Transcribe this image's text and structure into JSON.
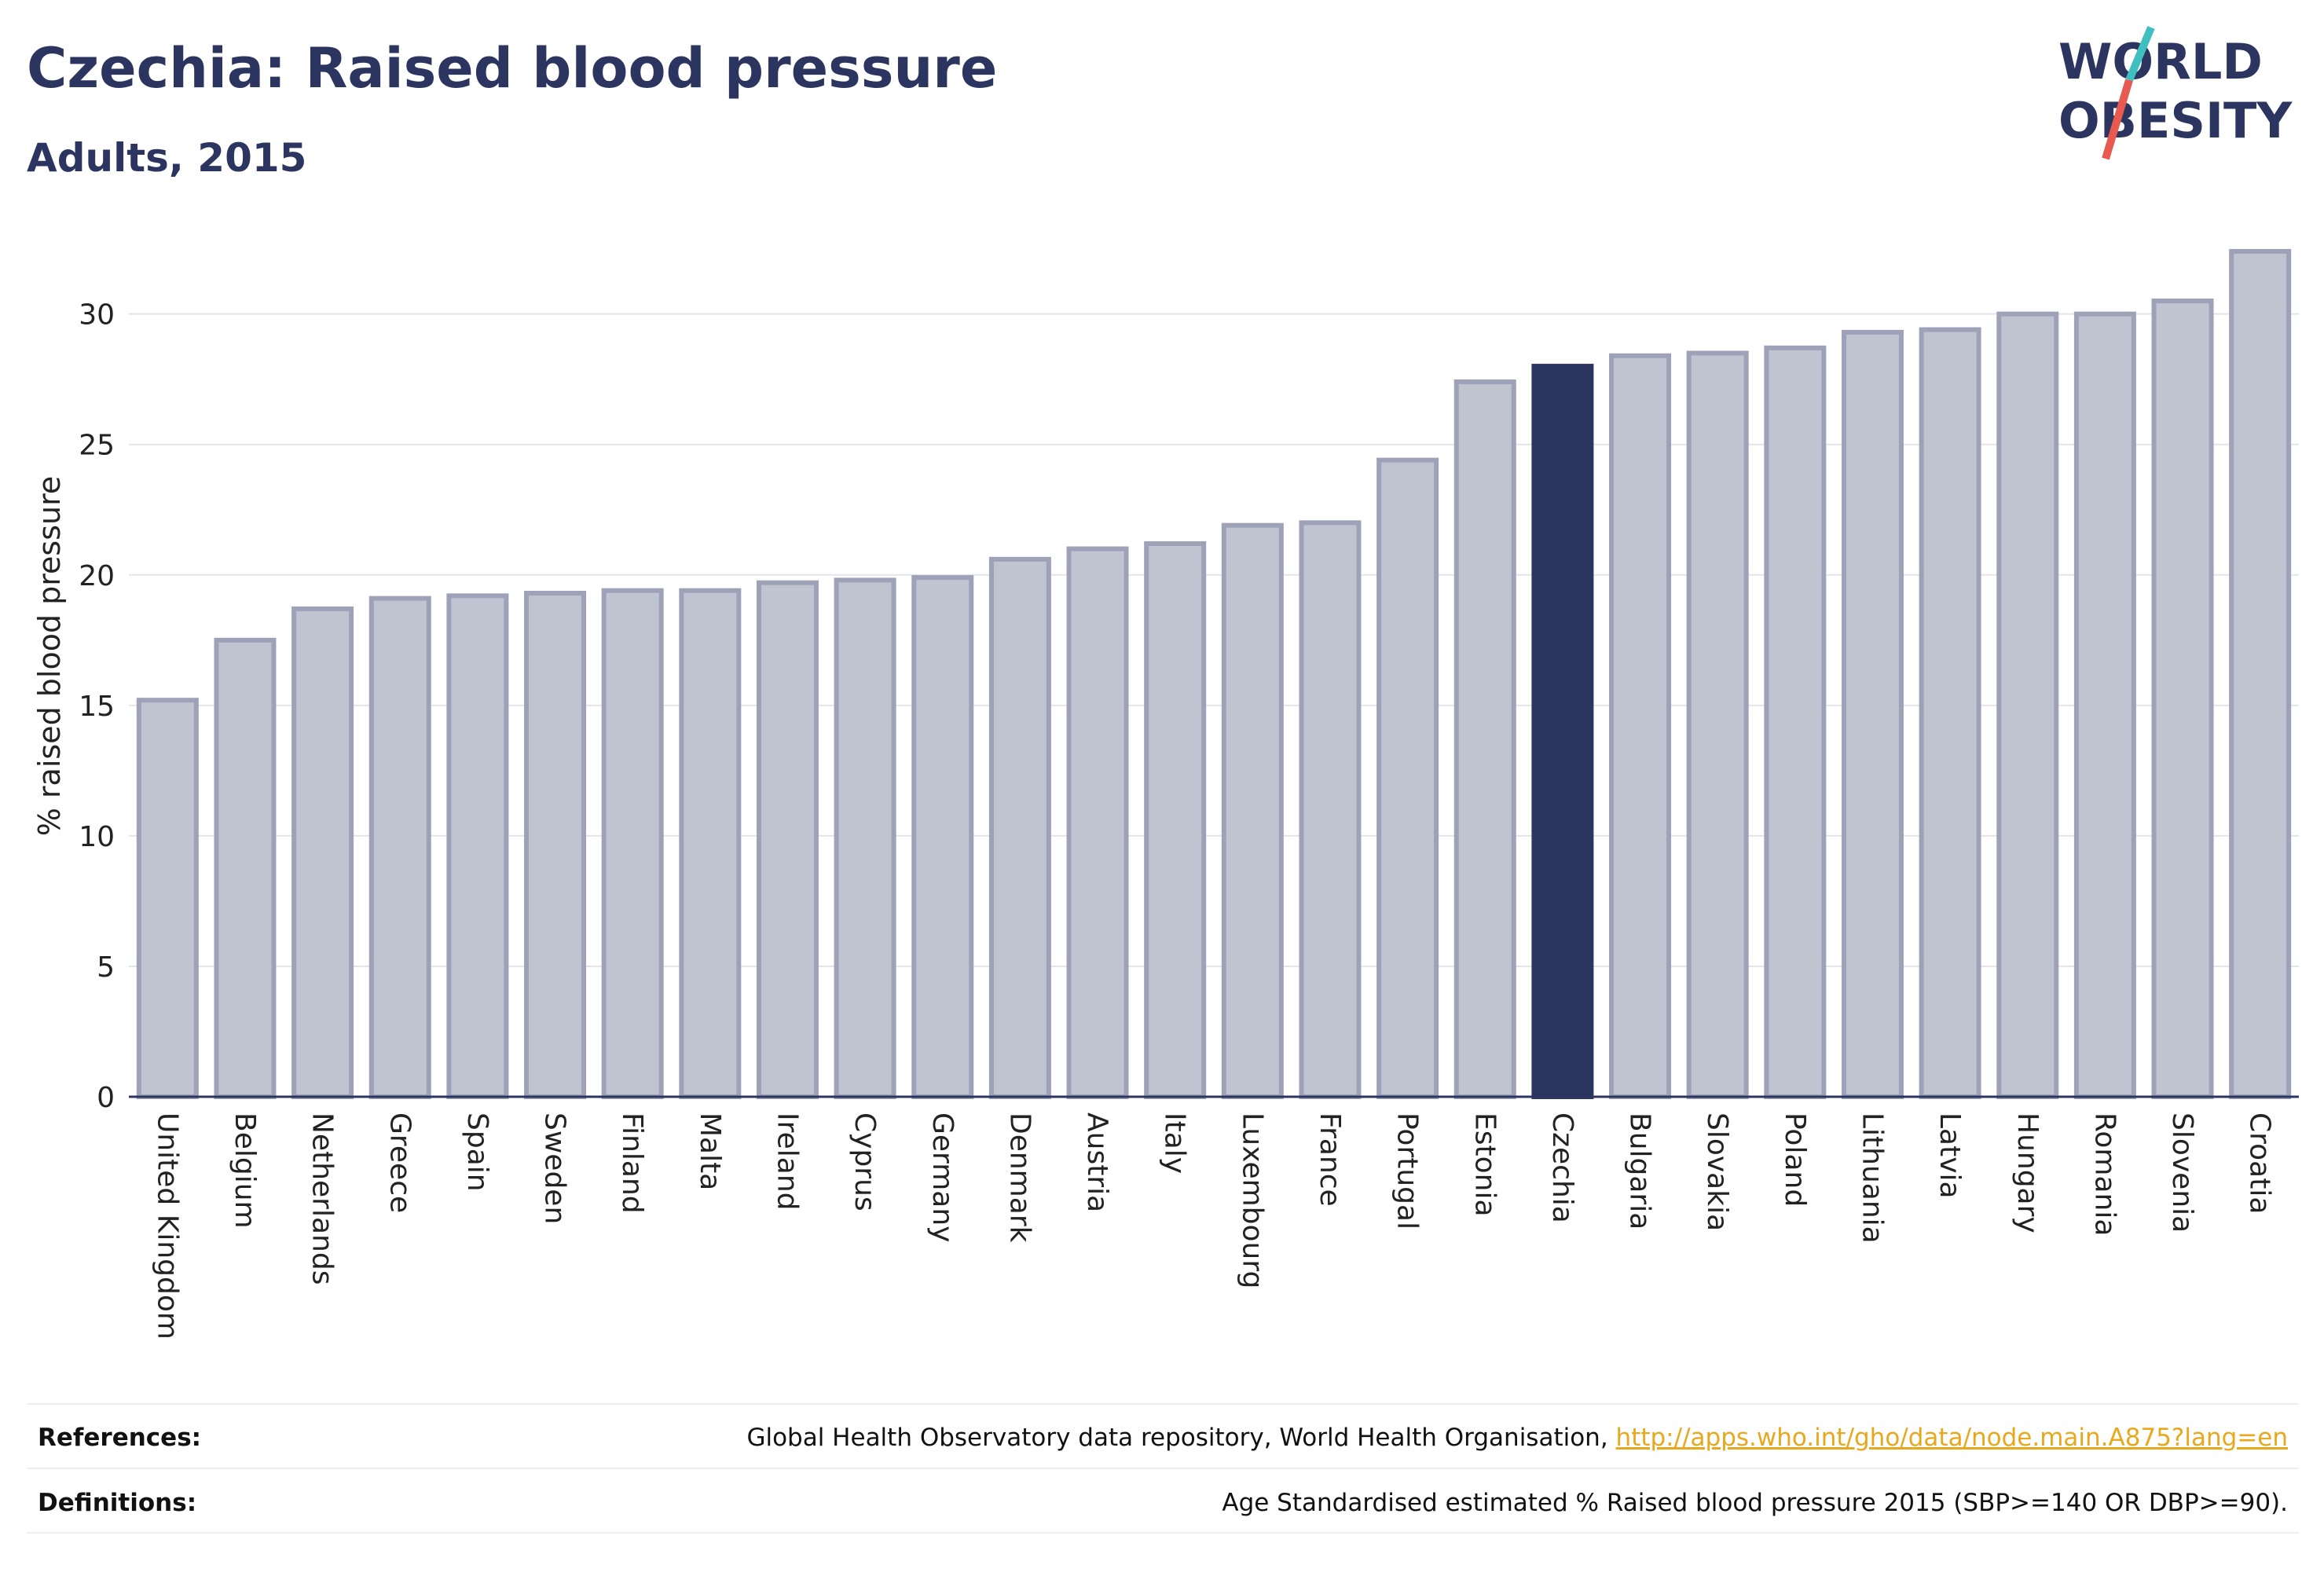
{
  "header": {
    "title": "Czechia: Raised blood pressure",
    "subtitle": "Adults, 2015"
  },
  "logo": {
    "line1": "WORLD",
    "line2": "OBESITY"
  },
  "footer": {
    "references_label": "References:",
    "references_text": "Global Health Observatory data repository, World Health Organisation,",
    "references_link": "http://apps.who.int/gho/data/node.main.A875?lang=en",
    "definitions_label": "Definitions:",
    "definitions_text": "Age Standardised estimated % Raised blood pressure 2015 (SBP>=140 OR DBP>=90)."
  },
  "colors": {
    "highlight": "#2b3560",
    "bar_fill": "#c0c3d0",
    "bar_stroke": "#9da2b8",
    "grid": "#e3e5ea",
    "logo_blue": "#2b3560",
    "logo_teal": "#3fbfbf",
    "logo_red": "#e85a50"
  },
  "chart_data": {
    "type": "bar",
    "title": "Czechia: Raised blood pressure",
    "subtitle": "Adults, 2015",
    "xlabel": "",
    "ylabel": "% raised blood pressure",
    "ylim": [
      0,
      33
    ],
    "yticks": [
      0,
      5,
      10,
      15,
      20,
      25,
      30
    ],
    "grid": true,
    "highlight": "Czechia",
    "categories": [
      "United Kingdom",
      "Belgium",
      "Netherlands",
      "Greece",
      "Spain",
      "Sweden",
      "Finland",
      "Malta",
      "Ireland",
      "Cyprus",
      "Germany",
      "Denmark",
      "Austria",
      "Italy",
      "Luxembourg",
      "France",
      "Portugal",
      "Estonia",
      "Czechia",
      "Bulgaria",
      "Slovakia",
      "Poland",
      "Lithuania",
      "Latvia",
      "Hungary",
      "Romania",
      "Slovenia",
      "Croatia"
    ],
    "values": [
      15.2,
      17.5,
      18.7,
      19.1,
      19.2,
      19.3,
      19.4,
      19.4,
      19.7,
      19.8,
      19.9,
      20.6,
      21.0,
      21.2,
      21.9,
      22.0,
      24.4,
      27.4,
      28.0,
      28.4,
      28.5,
      28.7,
      29.3,
      29.4,
      30.0,
      30.0,
      30.5,
      32.4
    ]
  }
}
